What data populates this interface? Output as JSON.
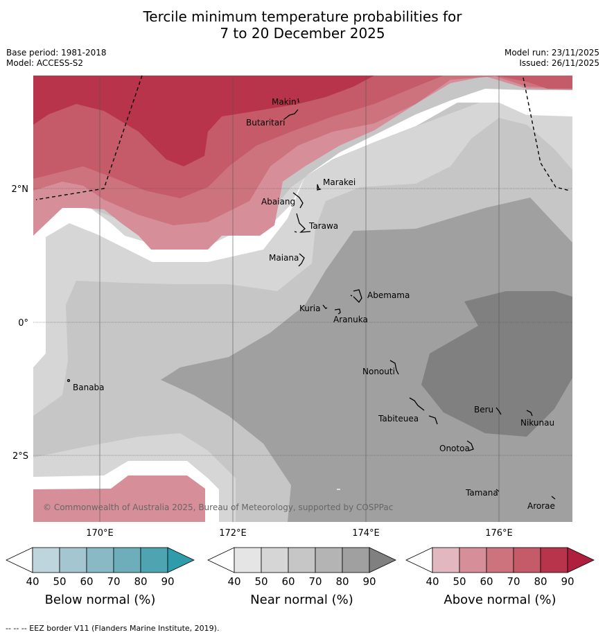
{
  "title_line1": "Tercile minimum temperature probabilities for",
  "title_line2": "7 to 20 December 2025",
  "base_period": "Base period: 1981-2018",
  "model": "Model: ACCESS-S2",
  "model_run": "Model run: 23/11/2025",
  "issued": "Issued: 26/11/2025",
  "map": {
    "lon_labels": [
      "170°E",
      "172°E",
      "174°E",
      "176°E"
    ],
    "lat_labels": [
      "2°N",
      "0°",
      "2°S"
    ],
    "copyright": "© Commonwealth of Australia 2025, Bureau of Meteorology, supported by COSPPac",
    "places": [
      {
        "name": "Makin"
      },
      {
        "name": "Butaritari"
      },
      {
        "name": "Marakei"
      },
      {
        "name": "Abaiang"
      },
      {
        "name": "Tarawa"
      },
      {
        "name": "Maiana"
      },
      {
        "name": "Abemama"
      },
      {
        "name": "Kuria"
      },
      {
        "name": "Aranuka"
      },
      {
        "name": "Nonouti"
      },
      {
        "name": "Banaba"
      },
      {
        "name": "Beru"
      },
      {
        "name": "Tabiteuea"
      },
      {
        "name": "Nikunau"
      },
      {
        "name": "Onotoa"
      },
      {
        "name": "Tamana"
      },
      {
        "name": "Arorae"
      }
    ]
  },
  "colorbars": [
    {
      "label": "Below normal (%)",
      "ticks": [
        "40",
        "50",
        "60",
        "70",
        "80",
        "90"
      ],
      "colors": [
        "#ffffff",
        "#bfd5de",
        "#a3c6d0",
        "#89b9c4",
        "#6eaeba",
        "#4ea4b1",
        "#2f9cab"
      ]
    },
    {
      "label": "Near normal (%)",
      "ticks": [
        "40",
        "50",
        "60",
        "70",
        "80",
        "90"
      ],
      "colors": [
        "#ffffff",
        "#e5e5e5",
        "#d6d6d6",
        "#c6c6c6",
        "#b4b4b4",
        "#a0a0a0",
        "#808080"
      ]
    },
    {
      "label": "Above normal (%)",
      "ticks": [
        "40",
        "50",
        "60",
        "70",
        "80",
        "90"
      ],
      "colors": [
        "#ffffff",
        "#e3b7bf",
        "#d68f99",
        "#cc737e",
        "#c55b68",
        "#b8344a",
        "#b11f3f"
      ]
    }
  ],
  "footer": "--  --  -- EEZ border V11 (Flanders Marine Institute, 2019)."
}
